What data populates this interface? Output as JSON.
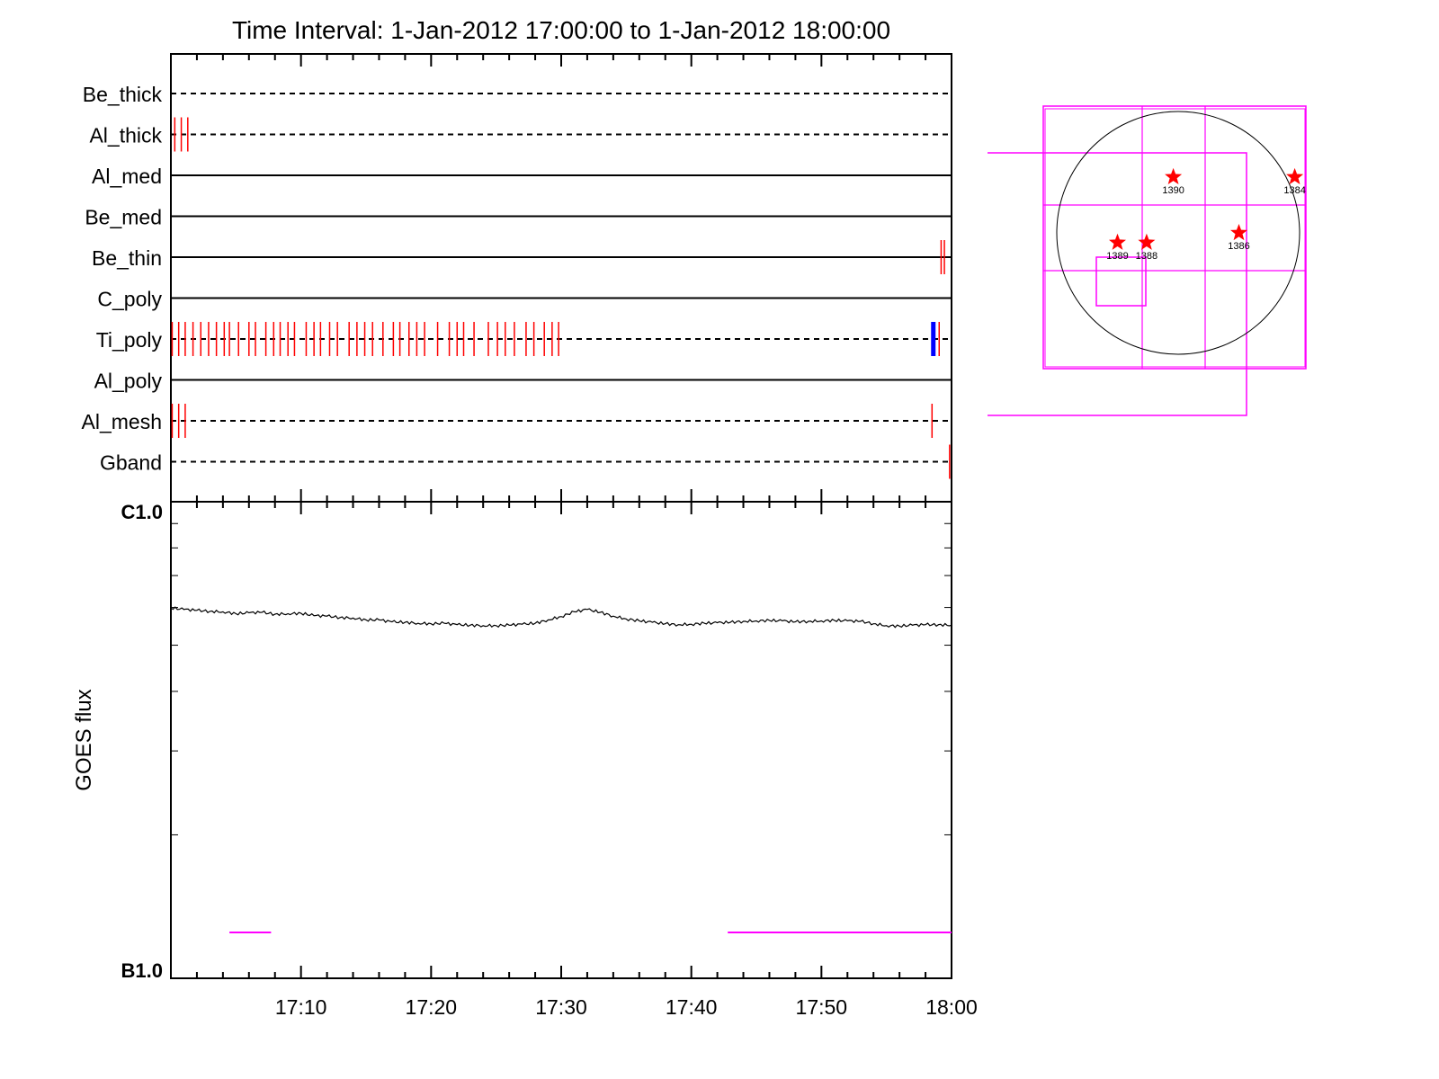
{
  "title": "Time Interval:  1-Jan-2012 17:00:00 to  1-Jan-2012 18:00:00",
  "colors": {
    "axis": "#000000",
    "event_tick": "#ff0000",
    "event_tick_alt": "#0000ff",
    "highlight": "#ff00ff",
    "star": "#ff0000",
    "curve": "#000000"
  },
  "x_axis": {
    "start_minute": 0,
    "end_minute": 60,
    "tick_labels": [
      "17:10",
      "17:20",
      "17:30",
      "17:40",
      "17:50",
      "18:00"
    ],
    "tick_minutes": [
      10,
      20,
      30,
      40,
      50,
      60
    ]
  },
  "chart_data": [
    {
      "type": "scatter",
      "name": "attenuator-state-timeline",
      "rows": [
        {
          "label": "Be_thick",
          "line": "dashed",
          "events": []
        },
        {
          "label": "Al_thick",
          "line": "dashed",
          "events": [
            {
              "minute": 0.3
            },
            {
              "minute": 0.8
            },
            {
              "minute": 1.3
            }
          ]
        },
        {
          "label": "Al_med",
          "line": "solid",
          "events": []
        },
        {
          "label": "Be_med",
          "line": "solid",
          "events": []
        },
        {
          "label": "Be_thin",
          "line": "solid",
          "events": [
            {
              "minute": 59.2
            },
            {
              "minute": 59.45
            }
          ]
        },
        {
          "label": "C_poly",
          "line": "solid",
          "events": []
        },
        {
          "label": "Ti_poly",
          "line": "dashed",
          "events": [
            {
              "minute": 0.1
            },
            {
              "minute": 0.6
            },
            {
              "minute": 1.1
            },
            {
              "minute": 1.7
            },
            {
              "minute": 2.3
            },
            {
              "minute": 2.9
            },
            {
              "minute": 3.5
            },
            {
              "minute": 4.1
            },
            {
              "minute": 4.5
            },
            {
              "minute": 5.2
            },
            {
              "minute": 6.0
            },
            {
              "minute": 6.5
            },
            {
              "minute": 7.3
            },
            {
              "minute": 7.9
            },
            {
              "minute": 8.4
            },
            {
              "minute": 9.0
            },
            {
              "minute": 9.5
            },
            {
              "minute": 10.4
            },
            {
              "minute": 11.0
            },
            {
              "minute": 11.5
            },
            {
              "minute": 12.2
            },
            {
              "minute": 12.8
            },
            {
              "minute": 13.7
            },
            {
              "minute": 14.3
            },
            {
              "minute": 14.9
            },
            {
              "minute": 15.5
            },
            {
              "minute": 16.3
            },
            {
              "minute": 17.1
            },
            {
              "minute": 17.6
            },
            {
              "minute": 18.3
            },
            {
              "minute": 18.9
            },
            {
              "minute": 19.5
            },
            {
              "minute": 20.5
            },
            {
              "minute": 21.4
            },
            {
              "minute": 22.0
            },
            {
              "minute": 22.5
            },
            {
              "minute": 23.3
            },
            {
              "minute": 24.4
            },
            {
              "minute": 25.1
            },
            {
              "minute": 25.7
            },
            {
              "minute": 26.4
            },
            {
              "minute": 27.3
            },
            {
              "minute": 27.9
            },
            {
              "minute": 28.7
            },
            {
              "minute": 29.3
            },
            {
              "minute": 29.8
            },
            {
              "minute": 58.6,
              "color": "blue",
              "wide": true
            },
            {
              "minute": 59.05
            }
          ]
        },
        {
          "label": "Al_poly",
          "line": "solid",
          "events": []
        },
        {
          "label": "Al_mesh",
          "line": "dashed",
          "events": [
            {
              "minute": 0.1
            },
            {
              "minute": 0.6
            },
            {
              "minute": 1.1
            },
            {
              "minute": 58.5
            }
          ]
        },
        {
          "label": "Gband",
          "line": "dashed",
          "events": [
            {
              "minute": 59.85
            }
          ]
        }
      ]
    },
    {
      "type": "line",
      "name": "goes-flux",
      "ylabel": "GOES flux",
      "y_top_label": "C1.0",
      "y_bottom_label": "B1.0",
      "y_scale": "log",
      "ylim_log_fraction": [
        0,
        1
      ],
      "x": [
        0,
        1,
        2,
        3,
        4,
        5,
        6,
        7,
        8,
        9,
        10,
        11,
        12,
        13,
        14,
        15,
        16,
        17,
        18,
        19,
        20,
        21,
        22,
        23,
        24,
        25,
        26,
        27,
        28,
        29,
        30,
        31,
        32,
        33,
        34,
        35,
        36,
        37,
        38,
        39,
        40,
        41,
        42,
        43,
        44,
        45,
        46,
        47,
        48,
        49,
        50,
        51,
        52,
        53,
        54,
        55,
        56,
        57,
        58,
        59,
        60
      ],
      "y_fraction": [
        0.777,
        0.774,
        0.772,
        0.77,
        0.769,
        0.765,
        0.767,
        0.768,
        0.764,
        0.765,
        0.766,
        0.761,
        0.76,
        0.757,
        0.756,
        0.752,
        0.752,
        0.748,
        0.747,
        0.745,
        0.744,
        0.745,
        0.742,
        0.741,
        0.74,
        0.74,
        0.741,
        0.743,
        0.745,
        0.752,
        0.759,
        0.769,
        0.774,
        0.768,
        0.76,
        0.754,
        0.75,
        0.747,
        0.744,
        0.742,
        0.743,
        0.745,
        0.746,
        0.747,
        0.749,
        0.75,
        0.751,
        0.75,
        0.748,
        0.749,
        0.75,
        0.751,
        0.75,
        0.749,
        0.744,
        0.74,
        0.739,
        0.741,
        0.742,
        0.742,
        0.741
      ],
      "highlight_intervals": [
        [
          4.5,
          7.7
        ],
        [
          42.8,
          60
        ]
      ]
    },
    {
      "type": "scatter",
      "name": "solar-disk-map",
      "active_regions": [
        {
          "label": "1390",
          "x_frac": 0.48,
          "y_frac": 0.27
        },
        {
          "label": "1384",
          "x_frac": 0.98,
          "y_frac": 0.27
        },
        {
          "label": "1386",
          "x_frac": 0.75,
          "y_frac": 0.5
        },
        {
          "label": "1389",
          "x_frac": 0.25,
          "y_frac": 0.54
        },
        {
          "label": "1388",
          "x_frac": 0.37,
          "y_frac": 0.54
        }
      ]
    }
  ]
}
